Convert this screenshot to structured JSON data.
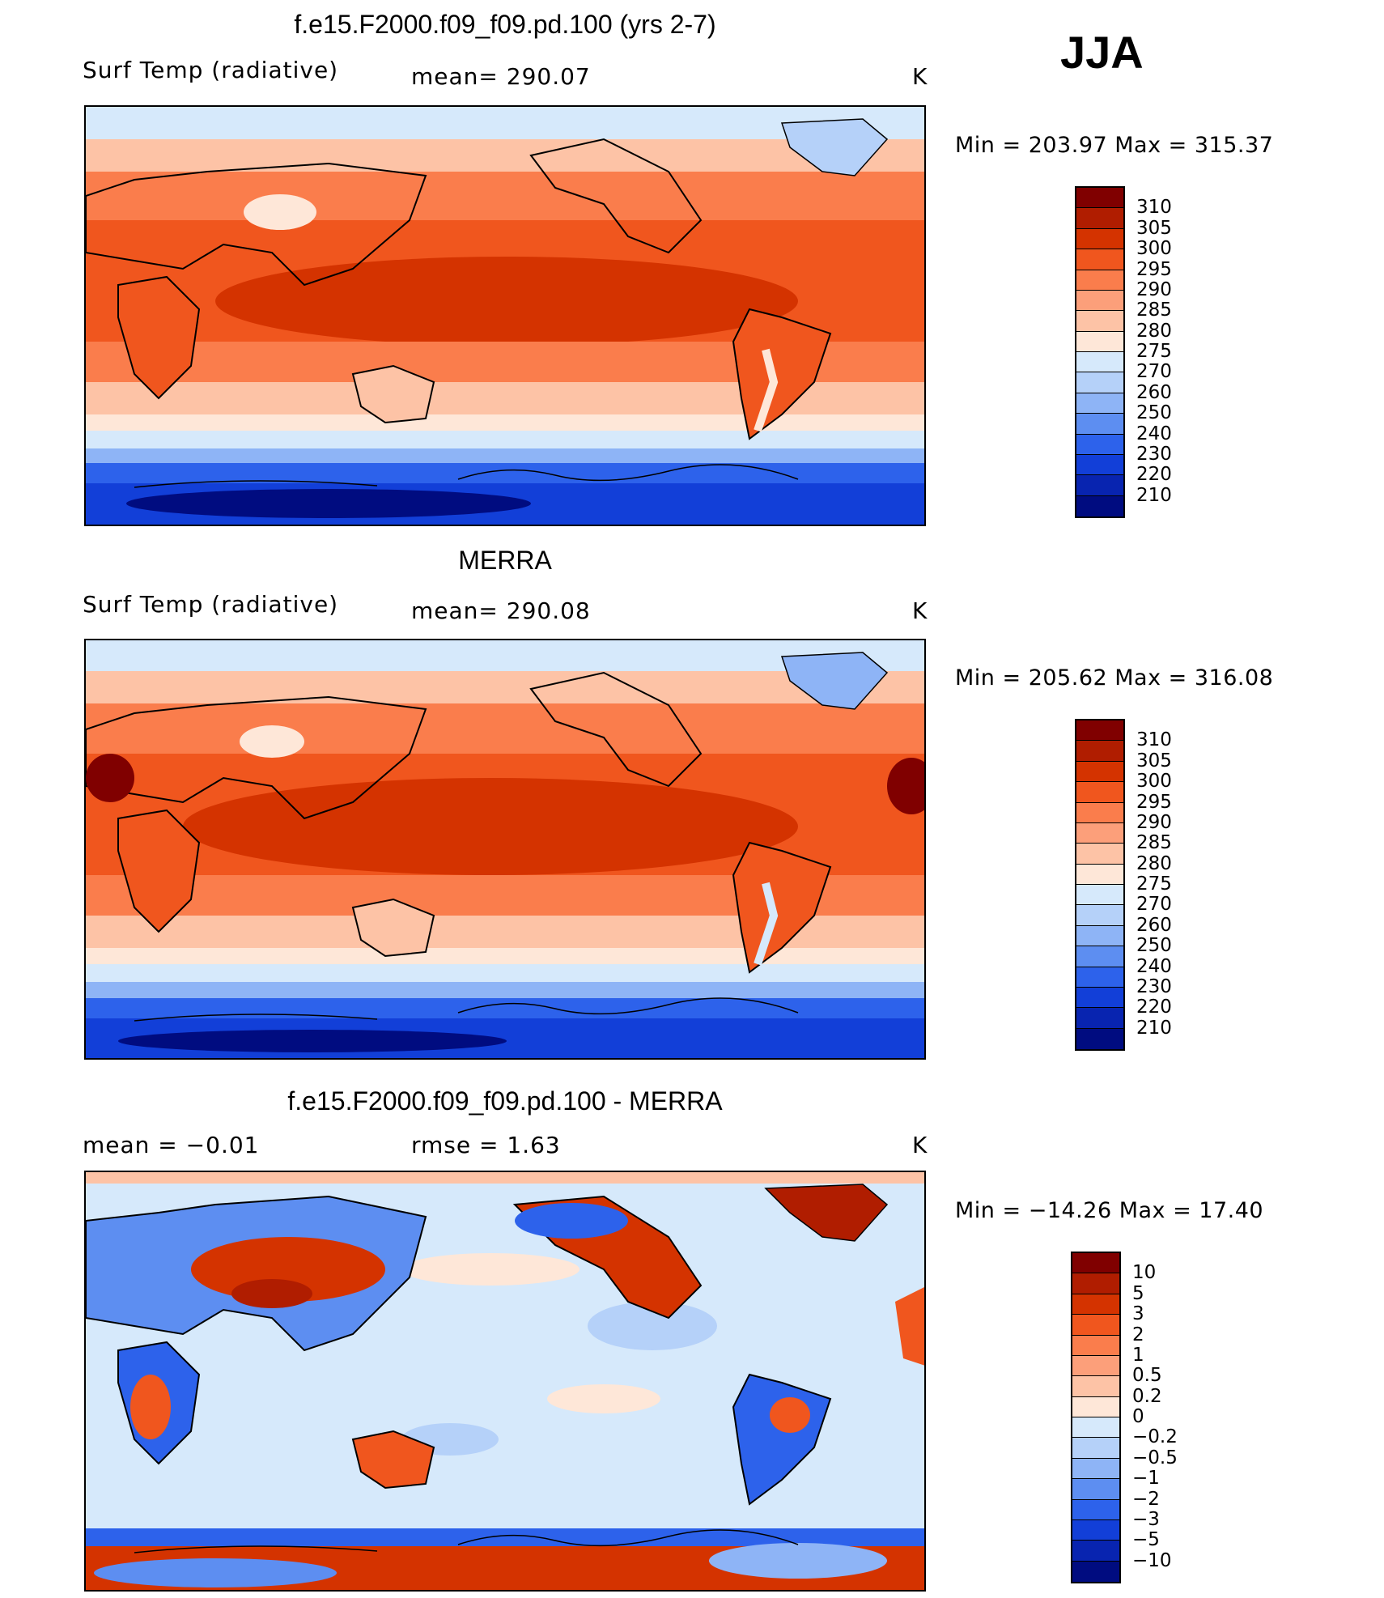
{
  "season": "JJA",
  "units": "K",
  "panels": [
    {
      "title": "f.e15.F2000.f09_f09.pd.100 (yrs 2-7)",
      "left_label": "Surf Temp (radiative)",
      "center_label": "mean= 290.07",
      "right_label": "K",
      "minmax": "Min = 203.97 Max = 315.37"
    },
    {
      "title": "MERRA",
      "left_label": "Surf Temp (radiative)",
      "center_label": "mean= 290.08",
      "right_label": "K",
      "minmax": "Min = 205.62 Max = 316.08"
    },
    {
      "title": "f.e15.F2000.f09_f09.pd.100 - MERRA",
      "left_label": "mean = −0.01",
      "center_label": "rmse = 1.63",
      "right_label": "K",
      "minmax": "Min = −14.26 Max = 17.40"
    }
  ],
  "colorbars": {
    "absolute": {
      "levels": [
        "310",
        "305",
        "300",
        "295",
        "290",
        "285",
        "280",
        "275",
        "270",
        "260",
        "250",
        "240",
        "230",
        "220",
        "210"
      ],
      "colors": [
        "#800000",
        "#b01d00",
        "#d43300",
        "#f0561e",
        "#fa7d4c",
        "#fc9f7a",
        "#fdc3a6",
        "#fee7d8",
        "#d6e9fb",
        "#b5d1f9",
        "#8eb4f6",
        "#5d8ef1",
        "#2d62eb",
        "#123fd8",
        "#0824b0",
        "#000c80"
      ]
    },
    "difference": {
      "levels": [
        "10",
        "5",
        "3",
        "2",
        "1",
        "0.5",
        "0.2",
        "0",
        "−0.2",
        "−0.5",
        "−1",
        "−2",
        "−3",
        "−5",
        "−10"
      ],
      "colors": [
        "#800000",
        "#b01d00",
        "#d43300",
        "#f0561e",
        "#fa7d4c",
        "#fc9f7a",
        "#fdc3a6",
        "#fee7d8",
        "#d6e9fb",
        "#b5d1f9",
        "#8eb4f6",
        "#5d8ef1",
        "#2d62eb",
        "#123fd8",
        "#0824b0",
        "#000c80"
      ]
    }
  },
  "chart_data": [
    {
      "type": "heatmap",
      "title": "f.e15.F2000.f09_f09.pd.100 (yrs 2-7)",
      "variable": "Surf Temp (radiative)",
      "mean": 290.07,
      "min": 203.97,
      "max": 315.37,
      "contour_levels": [
        210,
        220,
        230,
        240,
        250,
        260,
        270,
        275,
        280,
        285,
        290,
        295,
        300,
        305,
        310
      ]
    },
    {
      "type": "heatmap",
      "title": "MERRA",
      "variable": "Surf Temp (radiative)",
      "mean": 290.08,
      "min": 205.62,
      "max": 316.08,
      "contour_levels": [
        210,
        220,
        230,
        240,
        250,
        260,
        270,
        275,
        280,
        285,
        290,
        295,
        300,
        305,
        310
      ]
    },
    {
      "type": "heatmap",
      "title": "f.e15.F2000.f09_f09.pd.100 - MERRA",
      "mean": -0.01,
      "rmse": 1.63,
      "min": -14.26,
      "max": 17.4,
      "contour_levels": [
        -10,
        -5,
        -3,
        -2,
        -1,
        -0.5,
        -0.2,
        0,
        0.2,
        0.5,
        1,
        2,
        3,
        5,
        10
      ]
    }
  ]
}
